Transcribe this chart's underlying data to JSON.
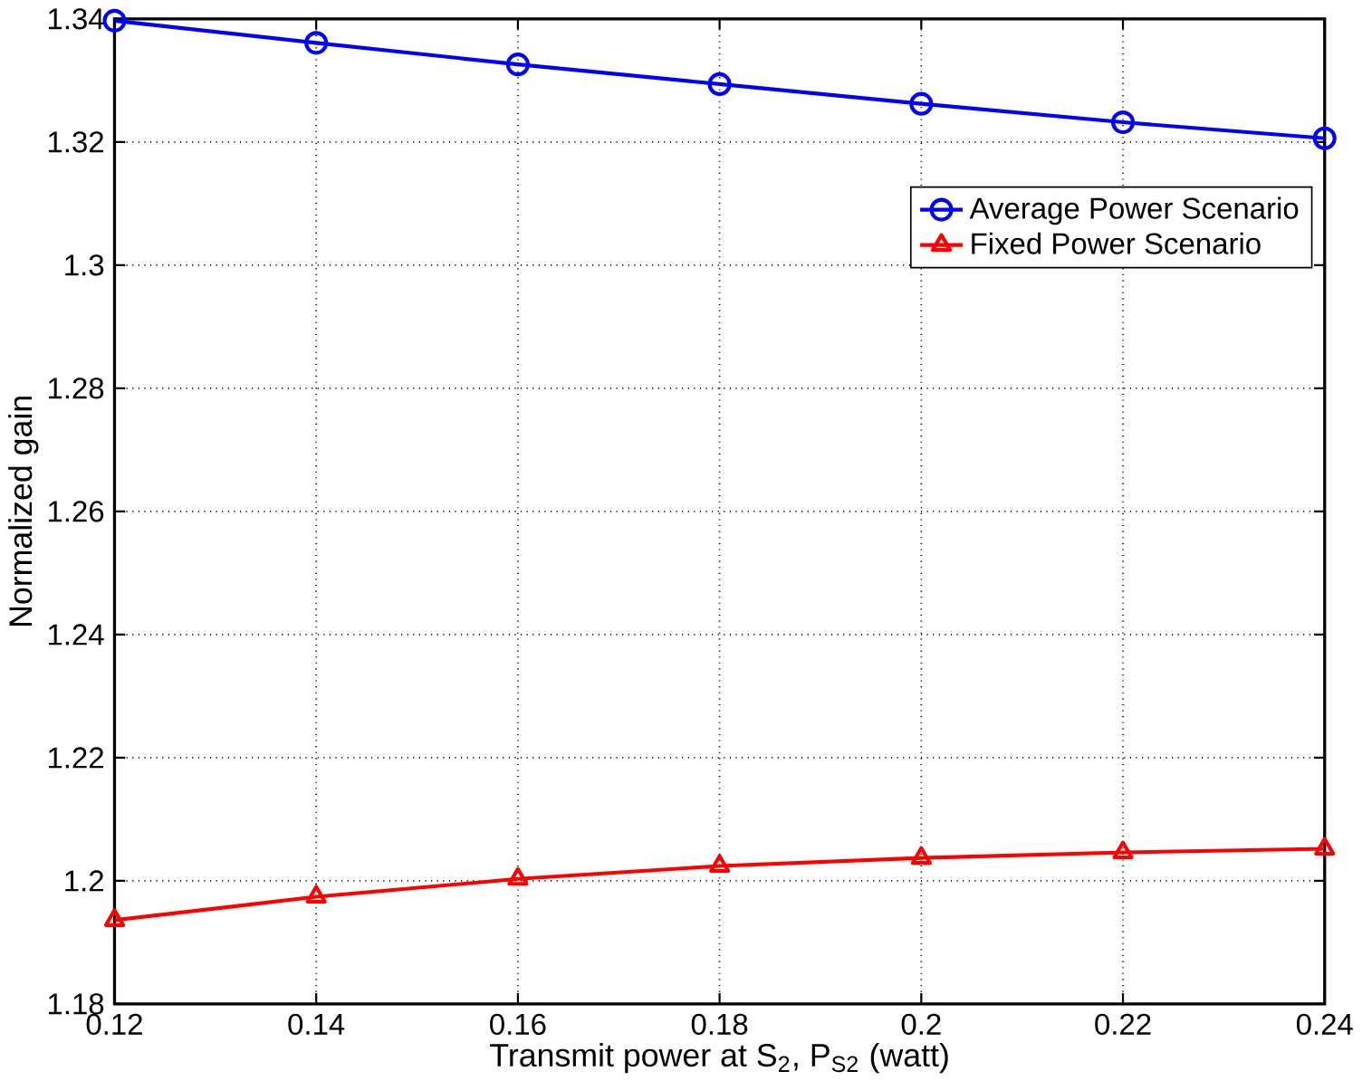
{
  "chart_data": {
    "type": "line",
    "xlabel": "Transmit power at S$_{2}$, P$_{S2}$ (watt)",
    "ylabel": "Normalized gain",
    "x": [
      0.12,
      0.14,
      0.16,
      0.18,
      0.2,
      0.22,
      0.24
    ],
    "series": [
      {
        "name": "Average Power Scenario",
        "color": "#0000ff",
        "marker": "circle",
        "values": [
          1.3397,
          1.3361,
          1.3326,
          1.3294,
          1.3262,
          1.3232,
          1.3206
        ]
      },
      {
        "name": "Fixed Power Scenario",
        "color": "#ff0000",
        "marker": "triangle",
        "values": [
          1.1936,
          1.1974,
          1.2003,
          1.2024,
          1.2037,
          1.2046,
          1.2052
        ]
      }
    ],
    "xlim": [
      0.12,
      0.24
    ],
    "xticks": [
      0.12,
      0.14,
      0.16,
      0.18,
      0.2,
      0.22,
      0.24
    ],
    "ylim": [
      1.18,
      1.34
    ],
    "yticks": [
      1.18,
      1.2,
      1.22,
      1.24,
      1.26,
      1.28,
      1.3,
      1.32,
      1.34
    ],
    "grid": true,
    "legend": "top right",
    "line_style": "solid"
  }
}
